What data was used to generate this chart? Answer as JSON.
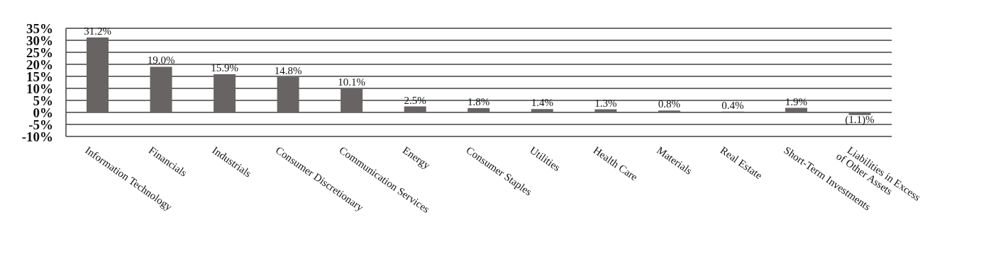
{
  "chart_data": {
    "type": "bar",
    "categories": [
      "Information Technology",
      "Financials",
      "Industrials",
      "Consumer Discretionary",
      "Communication Services",
      "Energy",
      "Consumer Staples",
      "Utilities",
      "Health Care",
      "Materials",
      "Real Estate",
      "Short-Term Investments",
      "Liabilities in Excess of Other Assets"
    ],
    "values": [
      31.2,
      19.0,
      15.9,
      14.8,
      10.1,
      2.5,
      1.8,
      1.4,
      1.3,
      0.8,
      0.4,
      1.9,
      -1.1
    ],
    "value_labels": [
      "31.2%",
      "19.0%",
      "15.9%",
      "14.8%",
      "10.1%",
      "2.5%",
      "1.8%",
      "1.4%",
      "1.3%",
      "0.8%",
      "0.4%",
      "1.9%",
      "(1.1)%"
    ],
    "color": "#686464",
    "ylim": [
      -10,
      35
    ],
    "yticks": [
      {
        "value": 35,
        "label": "35%"
      },
      {
        "value": 30,
        "label": "30%"
      },
      {
        "value": 25,
        "label": "25%"
      },
      {
        "value": 20,
        "label": "20%"
      },
      {
        "value": 15,
        "label": "15%"
      },
      {
        "value": 10,
        "label": "10%"
      },
      {
        "value": 5,
        "label": "5%"
      },
      {
        "value": 0,
        "label": "0%"
      },
      {
        "value": -5,
        "label": "-5%"
      },
      {
        "value": -10,
        "label": "-10%"
      }
    ],
    "grid": "y"
  }
}
